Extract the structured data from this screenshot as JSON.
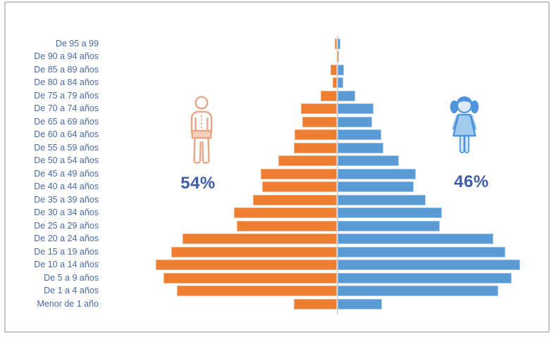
{
  "chart_data": {
    "type": "bar",
    "subtype": "population-pyramid",
    "orientation": "horizontal",
    "title": "",
    "xlabel": "",
    "ylabel": "",
    "grid": false,
    "legend_position": "none",
    "units": "relative bar length (longest bar = 100)",
    "categories_top_to_bottom": [
      "De 95 a 99",
      "De 90 a 94 años",
      "De 85 a 89 años",
      "De 80 a 84 años",
      "De 75 a 79 años",
      "De 70 a 74 años",
      "De 65 a 69 años",
      "De 60 a 64 años",
      "De 55 a 59 años",
      "De 50 a 54 años",
      "De 45 a 49 años",
      "De 40 a 44 años",
      "De 35 a 39 años",
      "De 30 a 34 años",
      "De 25 a 29 años",
      "De 20 a 24 años",
      "De 15 a 19 años",
      "De 10 a 14 años",
      "De 5 a 9 años",
      "De 1 a 4 años",
      "Menor de 1 año"
    ],
    "series": [
      {
        "id": "male",
        "side": "left",
        "share_label": "54%",
        "icon": "man-outline-icon",
        "values": [
          1.5,
          0.3,
          3.5,
          2.7,
          8.9,
          20.0,
          19.0,
          23.2,
          23.6,
          32.4,
          41.7,
          41.0,
          46.3,
          56.4,
          55.2,
          84.6,
          91.1,
          99.6,
          95.0,
          88.0,
          23.9
        ]
      },
      {
        "id": "female",
        "side": "right",
        "share_label": "46%",
        "icon": "girl-icon",
        "values": [
          1.9,
          0.4,
          3.7,
          3.1,
          9.7,
          19.7,
          19.3,
          24.3,
          25.1,
          33.6,
          42.9,
          41.7,
          48.3,
          57.5,
          56.0,
          85.7,
          91.9,
          100.0,
          95.4,
          88.4,
          24.7
        ]
      }
    ]
  },
  "annotations": {
    "male_share": "54%",
    "female_share": "46%"
  },
  "colors": {
    "male_bar": "#ED7D31",
    "male_bar_edge": "#F4B183",
    "female_bar": "#5B9BD5",
    "female_bar_edge": "#9DC3E6",
    "axis_line": "#d9d9d9",
    "label_text": "#4a6ba5",
    "percent_text": "#3d5da9",
    "male_icon_stroke": "#E9A687",
    "male_icon_fill": "#F5D0BA",
    "female_icon_stroke": "#4E94DB",
    "female_icon_fill": "#A3CBEE",
    "frame_border": "#c4c4c4"
  }
}
